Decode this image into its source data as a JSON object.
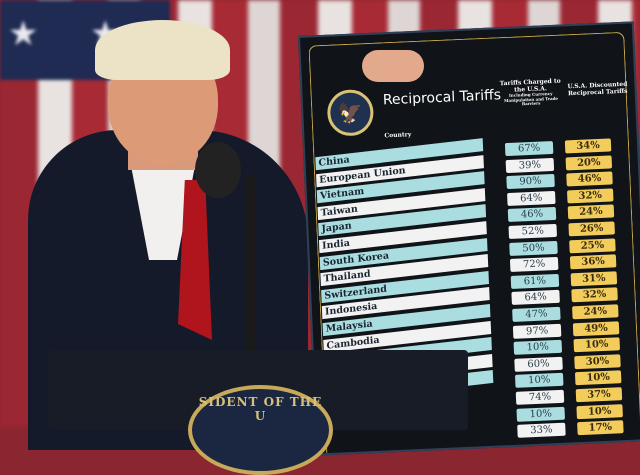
{
  "board": {
    "title": "Reciprocal Tariffs",
    "country_header": "Country",
    "col2_header": "Tariffs Charged to the U.S.A.",
    "col2_subheader": "Including Currency Manipulation and Trade Barriers",
    "col3_header": "U.S.A. Discounted Reciprocal Tariffs",
    "rows": [
      {
        "country": "China",
        "charged": "67%",
        "reciprocal": "34%"
      },
      {
        "country": "European Union",
        "charged": "39%",
        "reciprocal": "20%"
      },
      {
        "country": "Vietnam",
        "charged": "90%",
        "reciprocal": "46%"
      },
      {
        "country": "Taiwan",
        "charged": "64%",
        "reciprocal": "32%"
      },
      {
        "country": "Japan",
        "charged": "46%",
        "reciprocal": "24%"
      },
      {
        "country": "India",
        "charged": "52%",
        "reciprocal": "26%"
      },
      {
        "country": "South Korea",
        "charged": "50%",
        "reciprocal": "25%"
      },
      {
        "country": "Thailand",
        "charged": "72%",
        "reciprocal": "36%"
      },
      {
        "country": "Switzerland",
        "charged": "61%",
        "reciprocal": "31%"
      },
      {
        "country": "Indonesia",
        "charged": "64%",
        "reciprocal": "32%"
      },
      {
        "country": "Malaysia",
        "charged": "47%",
        "reciprocal": "24%"
      },
      {
        "country": "Cambodia",
        "charged": "97%",
        "reciprocal": "49%"
      },
      {
        "country": "",
        "charged": "10%",
        "reciprocal": "10%"
      },
      {
        "country": "",
        "charged": "60%",
        "reciprocal": "30%"
      },
      {
        "country": "",
        "charged": "10%",
        "reciprocal": "10%"
      },
      {
        "country": "",
        "charged": "74%",
        "reciprocal": "37%"
      },
      {
        "country": "",
        "charged": "10%",
        "reciprocal": "10%"
      },
      {
        "country": "",
        "charged": "33%",
        "reciprocal": "17%"
      }
    ]
  },
  "podium": {
    "seal_text": "SIDENT OF THE U"
  },
  "colors": {
    "board": "#101418",
    "cyan_row": "#a9dde0",
    "yellow_cell": "#f3cd5c",
    "tie": "#b0141c"
  }
}
